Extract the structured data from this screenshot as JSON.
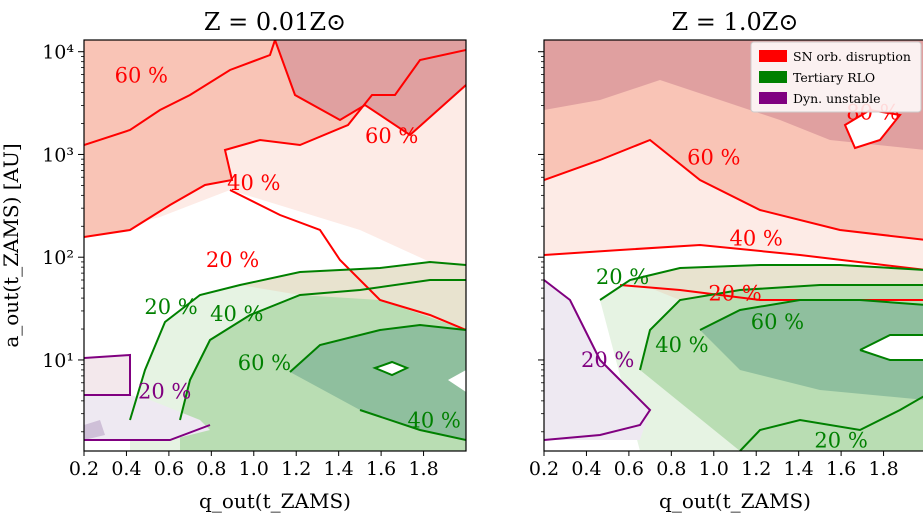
{
  "chart_data": [
    {
      "type": "contour",
      "title": "Z = 0.01Z⊙",
      "xlabel": "q_out(t_ZAMS)",
      "ylabel": "a_out(t_ZAMS) [AU]",
      "xlim": [
        0.2,
        2.0
      ],
      "ylim": [
        1.3,
        13000
      ],
      "yscale": "log",
      "xticks": [
        "0.2",
        "0.4",
        "0.6",
        "0.8",
        "1.0",
        "1.2",
        "1.4",
        "1.6",
        "1.8"
      ],
      "yticks": [
        "10¹",
        "10²",
        "10³",
        "10⁴"
      ],
      "contour_labels": [
        {
          "text": "60 %",
          "series": "SN orb. disruption",
          "x": 0.47,
          "y": 5000
        },
        {
          "text": "60 %",
          "series": "SN orb. disruption",
          "x": 1.65,
          "y": 1300
        },
        {
          "text": "40 %",
          "series": "SN orb. disruption",
          "x": 1.0,
          "y": 450
        },
        {
          "text": "20 %",
          "series": "SN orb. disruption",
          "x": 0.9,
          "y": 80
        },
        {
          "text": "20 %",
          "series": "Tertiary RLO",
          "x": 0.61,
          "y": 28
        },
        {
          "text": "40 %",
          "series": "Tertiary RLO",
          "x": 0.92,
          "y": 24
        },
        {
          "text": "60 %",
          "series": "Tertiary RLO",
          "x": 1.05,
          "y": 8
        },
        {
          "text": "40 %",
          "series": "Tertiary RLO",
          "x": 1.85,
          "y": 2.2
        },
        {
          "text": "20 %",
          "series": "Dyn. unstable",
          "x": 0.58,
          "y": 4.2
        }
      ]
    },
    {
      "type": "contour",
      "title": "Z = 1.0Z⊙",
      "xlabel": "q_out(t_ZAMS)",
      "xlim": [
        0.2,
        2.0
      ],
      "ylim": [
        1.3,
        13000
      ],
      "yscale": "log",
      "xticks": [
        "0.2",
        "0.4",
        "0.6",
        "0.8",
        "1.0",
        "1.2",
        "1.4",
        "1.6",
        "1.8"
      ],
      "yticks": [
        "10¹",
        "10²",
        "10³",
        "10⁴"
      ],
      "contour_labels": [
        {
          "text": "80 %",
          "series": "SN orb. disruption",
          "x": 1.75,
          "y": 2200
        },
        {
          "text": "60 %",
          "series": "SN orb. disruption",
          "x": 1.0,
          "y": 800
        },
        {
          "text": "40 %",
          "series": "SN orb. disruption",
          "x": 1.2,
          "y": 130
        },
        {
          "text": "20 %",
          "series": "SN orb. disruption",
          "x": 1.1,
          "y": 38
        },
        {
          "text": "20 %",
          "series": "Tertiary RLO",
          "x": 0.57,
          "y": 55
        },
        {
          "text": "60 %",
          "series": "Tertiary RLO",
          "x": 1.3,
          "y": 20
        },
        {
          "text": "40 %",
          "series": "Tertiary RLO",
          "x": 0.85,
          "y": 12
        },
        {
          "text": "20 %",
          "series": "Tertiary RLO",
          "x": 1.6,
          "y": 1.4
        },
        {
          "text": "20 %",
          "series": "Dyn. unstable",
          "x": 0.5,
          "y": 8.5
        }
      ]
    }
  ],
  "legend": {
    "placement": "top-right",
    "entries": [
      {
        "label": "SN orb. disruption",
        "color": "#ff0000"
      },
      {
        "label": "Tertiary RLO",
        "color": "#008000"
      },
      {
        "label": "Dyn. unstable",
        "color": "#800080"
      }
    ]
  },
  "colors": {
    "sn": "#ff0000",
    "rlo": "#008000",
    "dyn": "#800080"
  }
}
